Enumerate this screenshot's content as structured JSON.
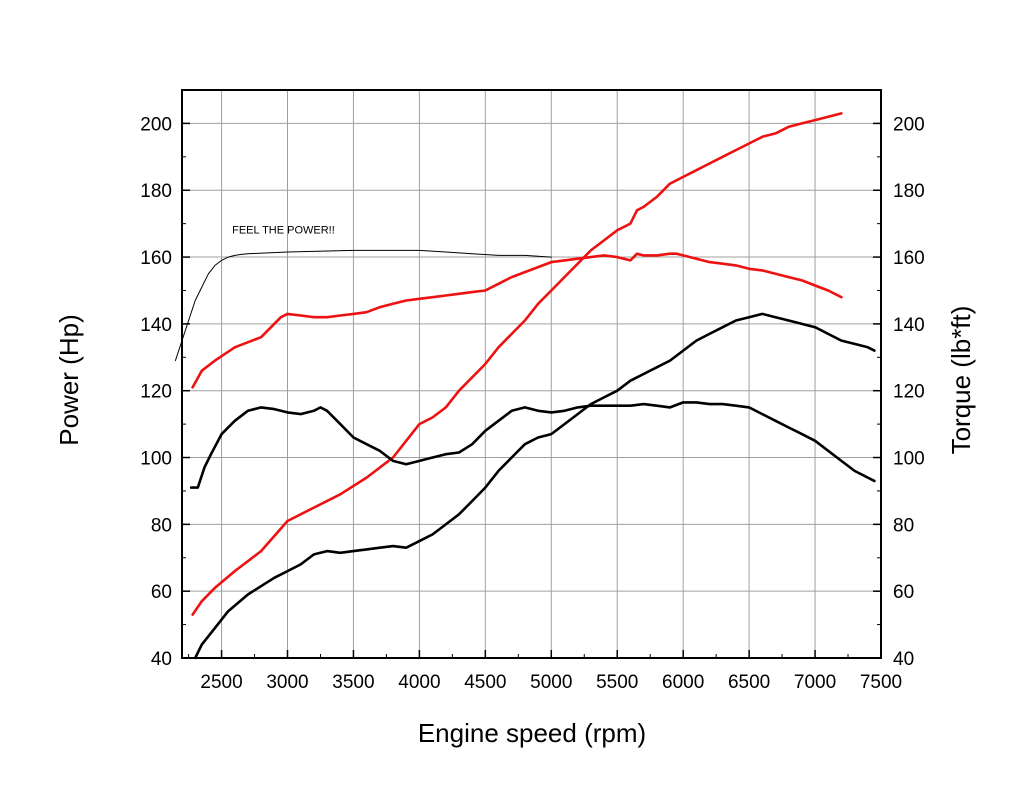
{
  "chart_data": {
    "type": "line",
    "title": "",
    "xlabel": "Engine speed (rpm)",
    "ylabel_left": "Power (Hp)",
    "ylabel_right": "Torque (lb*ft)",
    "xlim": [
      2200,
      7500
    ],
    "ylim": [
      40,
      210
    ],
    "grid": true,
    "x_ticks": [
      2500,
      3000,
      3500,
      4000,
      4500,
      5000,
      5500,
      6000,
      6500,
      7000,
      7500
    ],
    "y_ticks": [
      40,
      60,
      80,
      100,
      120,
      140,
      160,
      180,
      200
    ],
    "x_tick_labels": [
      "2500",
      "3000",
      "3500",
      "4000",
      "4500",
      "5000",
      "5500",
      "6000",
      "6500",
      "7000",
      "7500"
    ],
    "y_tick_labels": [
      "40",
      "60",
      "80",
      "100",
      "120",
      "140",
      "160",
      "180",
      "200"
    ],
    "annotation": {
      "text": "FEEL THE POWER!!",
      "x": 2580,
      "y": 167
    },
    "series": [
      {
        "name": "Power (red)",
        "color": "#ee1111",
        "axis": "left",
        "x": [
          2280,
          2350,
          2450,
          2600,
          2800,
          3000,
          3200,
          3400,
          3600,
          3800,
          3900,
          4000,
          4100,
          4200,
          4300,
          4400,
          4500,
          4600,
          4700,
          4800,
          4900,
          5000,
          5100,
          5200,
          5300,
          5400,
          5500,
          5600,
          5650,
          5700,
          5800,
          5900,
          6000,
          6100,
          6200,
          6300,
          6400,
          6500,
          6600,
          6700,
          6800,
          6900,
          7000,
          7100,
          7200
        ],
        "y": [
          53,
          57,
          61,
          66,
          72,
          81,
          85,
          89,
          94,
          100,
          105,
          110,
          112,
          115,
          120,
          124,
          128,
          133,
          137,
          141,
          146,
          150,
          154,
          158,
          162,
          165,
          168,
          170,
          174,
          175,
          178,
          182,
          184,
          186,
          188,
          190,
          192,
          194,
          196,
          197,
          199,
          200,
          201,
          202,
          203
        ]
      },
      {
        "name": "Torque (red)",
        "color": "#ee1111",
        "axis": "right",
        "x": [
          2280,
          2350,
          2450,
          2600,
          2800,
          2950,
          3000,
          3100,
          3200,
          3300,
          3400,
          3500,
          3600,
          3700,
          3800,
          3900,
          4000,
          4100,
          4200,
          4300,
          4400,
          4500,
          4600,
          4700,
          4800,
          4900,
          5000,
          5100,
          5200,
          5300,
          5400,
          5500,
          5600,
          5650,
          5700,
          5800,
          5900,
          5950,
          6000,
          6100,
          6200,
          6300,
          6400,
          6500,
          6600,
          6700,
          6800,
          6900,
          7000,
          7100,
          7200
        ],
        "y": [
          121,
          126,
          129,
          133,
          136,
          142,
          143,
          142.5,
          142,
          142,
          142.5,
          143,
          143.5,
          145,
          146,
          147,
          147.5,
          148,
          148.5,
          149,
          149.5,
          150,
          152,
          154,
          155.5,
          157,
          158.5,
          159,
          159.5,
          160,
          160.5,
          160,
          159,
          161,
          160.5,
          160.5,
          161,
          161,
          160.5,
          159.5,
          158.5,
          158,
          157.5,
          156.5,
          156,
          155,
          154,
          153,
          151.5,
          150,
          148
        ]
      },
      {
        "name": "Power (black)",
        "color": "#000000",
        "axis": "left",
        "x": [
          2300,
          2350,
          2450,
          2550,
          2700,
          2900,
          3000,
          3100,
          3200,
          3300,
          3400,
          3500,
          3600,
          3700,
          3800,
          3900,
          4000,
          4100,
          4200,
          4300,
          4400,
          4500,
          4600,
          4700,
          4800,
          4900,
          5000,
          5100,
          5200,
          5300,
          5400,
          5500,
          5600,
          5700,
          5800,
          5900,
          6000,
          6100,
          6200,
          6300,
          6400,
          6500,
          6600,
          6700,
          6800,
          6900,
          7000,
          7100,
          7200,
          7300,
          7400,
          7450
        ],
        "y": [
          40,
          44,
          49,
          54,
          59,
          64,
          66,
          68,
          71,
          72,
          71.5,
          72,
          72.5,
          73,
          73.5,
          73,
          75,
          77,
          80,
          83,
          87,
          91,
          96,
          100,
          104,
          106,
          107,
          110,
          113,
          116,
          118,
          120,
          123,
          125,
          127,
          129,
          132,
          135,
          137,
          139,
          141,
          142,
          143,
          142,
          141,
          140,
          139,
          137,
          135,
          134,
          133,
          132
        ]
      },
      {
        "name": "Torque (black)",
        "color": "#000000",
        "axis": "right",
        "x": [
          2270,
          2320,
          2370,
          2420,
          2500,
          2600,
          2700,
          2800,
          2900,
          3000,
          3100,
          3200,
          3250,
          3300,
          3400,
          3500,
          3600,
          3700,
          3800,
          3900,
          4000,
          4100,
          4200,
          4300,
          4400,
          4500,
          4600,
          4700,
          4800,
          4900,
          5000,
          5100,
          5200,
          5300,
          5400,
          5500,
          5600,
          5700,
          5800,
          5900,
          6000,
          6100,
          6200,
          6300,
          6400,
          6500,
          6600,
          6700,
          6800,
          6900,
          7000,
          7100,
          7200,
          7300,
          7400,
          7450
        ],
        "y": [
          91,
          91,
          97,
          101,
          107,
          111,
          114,
          115,
          114.5,
          113.5,
          113,
          114,
          115,
          114,
          110,
          106,
          104,
          102,
          99,
          98,
          99,
          100,
          101,
          101.5,
          104,
          108,
          111,
          114,
          115,
          114,
          113.5,
          114,
          115,
          115.5,
          115.5,
          115.5,
          115.5,
          116,
          115.5,
          115,
          116.5,
          116.5,
          116,
          116,
          115.5,
          115,
          113,
          111,
          109,
          107,
          105,
          102,
          99,
          96,
          94,
          93
        ]
      },
      {
        "name": "Annotation curve",
        "color": "#000000",
        "axis": "left",
        "thin": true,
        "x": [
          2150,
          2200,
          2250,
          2300,
          2350,
          2400,
          2450,
          2500,
          2550,
          2600,
          2650,
          2700,
          3000,
          3500,
          4000,
          4200,
          4400,
          4600,
          4800,
          5000
        ],
        "y": [
          129,
          135,
          141,
          147,
          151,
          155,
          157.5,
          159,
          160,
          160.5,
          160.8,
          161,
          161.5,
          162,
          162,
          161.5,
          161,
          160.5,
          160.5,
          160
        ]
      }
    ]
  }
}
